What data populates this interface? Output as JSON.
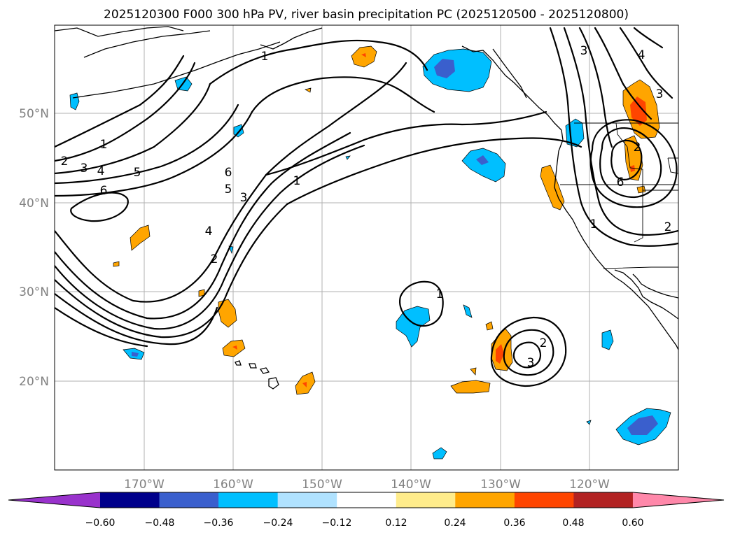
{
  "title": "2025120300 F000 300 hPa PV, river basin precipitation PC (2025120500 - 2025120800)",
  "lon_ticks": [
    "170°W",
    "160°W",
    "150°W",
    "140°W",
    "130°W",
    "120°W"
  ],
  "lat_ticks": [
    "50°N",
    "40°N",
    "30°N",
    "20°N"
  ],
  "contour_labels": [
    "1",
    "2",
    "3",
    "4",
    "5",
    "6",
    "6",
    "5",
    "4",
    "3",
    "2",
    "1",
    "1",
    "1",
    "2",
    "3",
    "2",
    "3",
    "4",
    "6",
    "1",
    "2",
    "3"
  ],
  "colorbar": {
    "ticks": [
      "−0.60",
      "−0.48",
      "−0.36",
      "−0.24",
      "−0.12",
      "0.12",
      "0.24",
      "0.36",
      "0.48",
      "0.60"
    ],
    "colors": [
      "#9932cc",
      "#00008b",
      "#3a5fcd",
      "#00bfff",
      "#b0e2ff",
      "#ffffff",
      "#ffec8b",
      "#ffa500",
      "#ff4500",
      "#b22222",
      "#ff88aa"
    ]
  },
  "colors": {
    "orange": "#ffa500",
    "red": "#ff4500",
    "cyan": "#00bfff",
    "blue": "#3a5fcd"
  }
}
